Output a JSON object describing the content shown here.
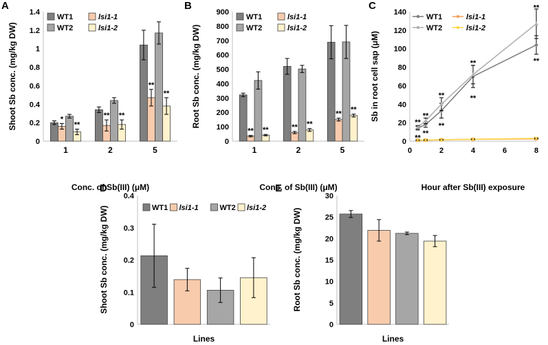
{
  "chart_data": [
    {
      "panel": "A",
      "type": "bar",
      "title": "",
      "xlabel": "Conc. of Sb(III)  (μM)",
      "ylabel": "Shoot Sb conc. (mg/kg DW)",
      "ylim": [
        0,
        1.4
      ],
      "yticks": [
        "0",
        "0.2",
        "0.4",
        "0.6",
        "0.8",
        "1",
        "1.2",
        "1.4"
      ],
      "categories": [
        "1",
        "2",
        "5"
      ],
      "series": [
        {
          "name": "WT1",
          "color": "#7f7f7f",
          "values": [
            0.2,
            0.34,
            1.04
          ],
          "err": [
            0.02,
            0.03,
            0.16
          ],
          "sig": [
            "",
            "",
            ""
          ]
        },
        {
          "name": "lsi1-1",
          "color": "#f8cbad",
          "values": [
            0.16,
            0.17,
            0.47
          ],
          "err": [
            0.03,
            0.06,
            0.09
          ],
          "sig": [
            "*",
            "**",
            "**"
          ]
        },
        {
          "name": "WT2",
          "color": "#a6a6a6",
          "values": [
            0.27,
            0.44,
            1.17
          ],
          "err": [
            0.02,
            0.03,
            0.12
          ],
          "sig": [
            "",
            "",
            ""
          ]
        },
        {
          "name": "lsi1-2",
          "color": "#fff2cc",
          "values": [
            0.1,
            0.18,
            0.38
          ],
          "err": [
            0.03,
            0.05,
            0.09
          ],
          "sig": [
            "**",
            "**",
            "**"
          ]
        }
      ]
    },
    {
      "panel": "B",
      "type": "bar",
      "title": "",
      "xlabel": "Conc. of Sb(III)  (μM)",
      "ylabel": "Root Sb conc. (mg/kg DW)",
      "ylim": [
        0,
        900
      ],
      "yticks": [
        "0",
        "100",
        "200",
        "300",
        "400",
        "500",
        "600",
        "700",
        "800",
        "900"
      ],
      "categories": [
        "1",
        "2",
        "5"
      ],
      "series": [
        {
          "name": "WT1",
          "color": "#7f7f7f",
          "values": [
            322,
            520,
            688
          ],
          "err": [
            12,
            55,
            115
          ],
          "sig": [
            "",
            "",
            ""
          ]
        },
        {
          "name": "lsi1-1",
          "color": "#f8cbad",
          "values": [
            35,
            60,
            150
          ],
          "err": [
            5,
            8,
            10
          ],
          "sig": [
            "**",
            "**",
            "**"
          ]
        },
        {
          "name": "WT2",
          "color": "#a6a6a6",
          "values": [
            422,
            502,
            690
          ],
          "err": [
            60,
            25,
            115
          ],
          "sig": [
            "",
            "",
            ""
          ]
        },
        {
          "name": "lsi1-2",
          "color": "#fff2cc",
          "values": [
            42,
            78,
            178
          ],
          "err": [
            5,
            10,
            10
          ],
          "sig": [
            "**",
            "**",
            "**"
          ]
        }
      ]
    },
    {
      "panel": "C",
      "type": "line",
      "title": "",
      "xlabel": "Hour after Sb(III) exposure",
      "ylabel": "Sb in root cell sap (μM)",
      "xlim": [
        0,
        8
      ],
      "ylim": [
        0,
        140
      ],
      "xticks": [
        "0",
        "2",
        "4",
        "6",
        "8"
      ],
      "yticks": [
        "0",
        "20",
        "40",
        "60",
        "80",
        "100",
        "120",
        "140"
      ],
      "x": [
        0.5,
        1,
        2,
        4,
        8
      ],
      "series": [
        {
          "name": "WT1",
          "color": "#808080",
          "marker": "diamond",
          "x": [
            0.5,
            1,
            2,
            4,
            8
          ],
          "values": [
            14,
            18,
            33,
            70,
            104
          ],
          "err": [
            2,
            3,
            8,
            12,
            10
          ]
        },
        {
          "name": "lsi1-1",
          "color": "#f4a460",
          "marker": "square",
          "x": [
            0.5,
            1,
            2,
            4,
            8
          ],
          "values": [
            1,
            1,
            1.5,
            2,
            2.5
          ],
          "err": [
            0.5,
            0.5,
            0.5,
            0.5,
            0.5
          ]
        },
        {
          "name": "WT2",
          "color": "#b0b0b0",
          "marker": "triangle",
          "x": [
            0.5,
            1,
            2,
            4,
            8
          ],
          "values": [
            15,
            22,
            40,
            72,
            127
          ],
          "err": [
            2,
            3,
            7,
            10,
            16
          ]
        },
        {
          "name": "lsi1-2",
          "color": "#ffd54a",
          "marker": "cross",
          "x": [
            0.5,
            1,
            2,
            4,
            8
          ],
          "values": [
            1,
            1.2,
            1.5,
            2,
            3
          ],
          "err": [
            0.5,
            0.5,
            0.5,
            0.5,
            0.5
          ]
        }
      ],
      "annotations": [
        {
          "x": 0.5,
          "y": 21,
          "text": "**"
        },
        {
          "x": 0.5,
          "y": 4,
          "text": "**"
        },
        {
          "x": 1,
          "y": 28,
          "text": "**"
        },
        {
          "x": 1,
          "y": 9,
          "text": "**"
        },
        {
          "x": 2,
          "y": 50,
          "text": "**"
        },
        {
          "x": 2,
          "y": 17,
          "text": "**"
        },
        {
          "x": 4,
          "y": 85,
          "text": "**"
        },
        {
          "x": 4,
          "y": 47,
          "text": "**"
        },
        {
          "x": 8,
          "y": 145,
          "text": "**"
        },
        {
          "x": 8,
          "y": 87,
          "text": "**"
        }
      ]
    },
    {
      "panel": "D",
      "type": "bar",
      "title": "",
      "xlabel": "Lines",
      "ylabel": "Shoot Sb conc. (mg/kg DW)",
      "ylim": [
        0,
        0.4
      ],
      "yticks": [
        "0",
        "0.1",
        "0.2",
        "0.3",
        "0.4"
      ],
      "categories": [
        "WT1",
        "lsi1-1",
        "WT2",
        "lsi1-2"
      ],
      "colors": [
        "#7f7f7f",
        "#f8cbad",
        "#a6a6a6",
        "#fff2cc"
      ],
      "values": [
        0.213,
        0.139,
        0.106,
        0.145
      ],
      "err": [
        0.098,
        0.035,
        0.038,
        0.062
      ],
      "legend": [
        "WT1",
        "lsi1-1",
        "WT2",
        "lsi1-2"
      ]
    },
    {
      "panel": "E",
      "type": "bar",
      "title": "",
      "xlabel": "Lines",
      "ylabel": "Root Sb conc. (mg/kg DW)",
      "ylim": [
        0,
        30
      ],
      "yticks": [
        "0",
        "5",
        "10",
        "15",
        "20",
        "25",
        "30"
      ],
      "categories": [
        "WT1",
        "lsi1-1",
        "WT2",
        "lsi1-2"
      ],
      "colors": [
        "#7f7f7f",
        "#f8cbad",
        "#a6a6a6",
        "#fff2cc"
      ],
      "values": [
        25.7,
        21.9,
        21.2,
        19.4
      ],
      "err": [
        0.8,
        2.5,
        0.3,
        1.3
      ]
    }
  ]
}
